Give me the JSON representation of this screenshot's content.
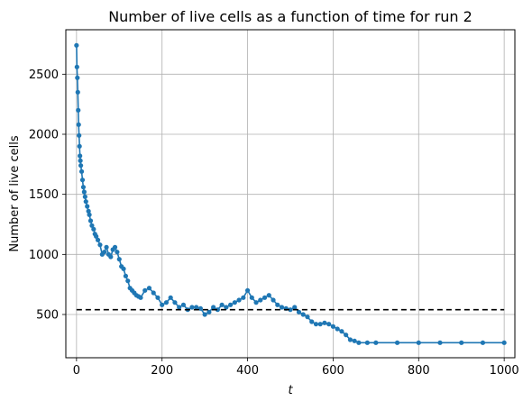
{
  "chart_data": {
    "type": "line",
    "title": "Number of live cells as a function of time for run 2",
    "xlabel": "t",
    "ylabel": "Number of live cells",
    "xlim": [
      -25,
      1025
    ],
    "ylim": [
      140,
      2870
    ],
    "grid": true,
    "xticks": [
      0,
      200,
      400,
      600,
      800,
      1000
    ],
    "yticks": [
      500,
      1000,
      1500,
      2000,
      2500
    ],
    "series_color": "#1f77b4",
    "reference_color": "#000000",
    "series": [
      {
        "values_x": [
          0,
          1,
          2,
          3,
          4,
          5,
          6,
          7,
          8,
          9,
          10,
          12,
          14,
          16,
          18,
          20,
          22,
          25,
          28,
          30,
          33,
          36,
          40,
          43,
          46,
          50,
          55,
          60,
          65,
          70,
          75,
          80,
          85,
          90,
          95,
          100,
          105,
          110,
          115,
          120,
          125,
          130,
          135,
          140,
          145,
          150,
          160,
          170,
          180,
          190,
          200,
          210,
          220,
          230,
          240,
          250,
          260,
          270,
          280,
          290,
          300,
          310,
          320,
          330,
          340,
          350,
          360,
          370,
          380,
          390,
          400,
          410,
          420,
          430,
          440,
          450,
          460,
          470,
          480,
          490,
          500,
          510,
          520,
          530,
          540,
          550,
          560,
          570,
          580,
          590,
          600,
          610,
          620,
          630,
          640,
          650,
          660,
          680,
          700,
          750,
          800,
          850,
          900,
          950,
          1000
        ],
        "values_y": [
          2740,
          2560,
          2470,
          2350,
          2200,
          2080,
          1990,
          1900,
          1820,
          1780,
          1740,
          1690,
          1620,
          1560,
          1520,
          1480,
          1440,
          1400,
          1360,
          1330,
          1280,
          1240,
          1210,
          1170,
          1150,
          1120,
          1080,
          1000,
          1020,
          1060,
          1000,
          980,
          1040,
          1060,
          1020,
          960,
          900,
          880,
          820,
          780,
          720,
          700,
          680,
          660,
          650,
          640,
          700,
          720,
          680,
          640,
          580,
          600,
          640,
          600,
          560,
          580,
          540,
          560,
          560,
          550,
          500,
          520,
          560,
          540,
          580,
          560,
          580,
          600,
          620,
          640,
          700,
          640,
          600,
          620,
          640,
          660,
          620,
          580,
          560,
          550,
          540,
          560,
          520,
          500,
          480,
          440,
          420,
          420,
          430,
          420,
          400,
          380,
          360,
          330,
          290,
          280,
          265,
          265,
          265,
          265,
          265,
          265,
          265,
          265,
          265
        ]
      }
    ],
    "reference_line": {
      "y": 540,
      "x_range": [
        0,
        1000
      ],
      "style": "dashed"
    }
  }
}
